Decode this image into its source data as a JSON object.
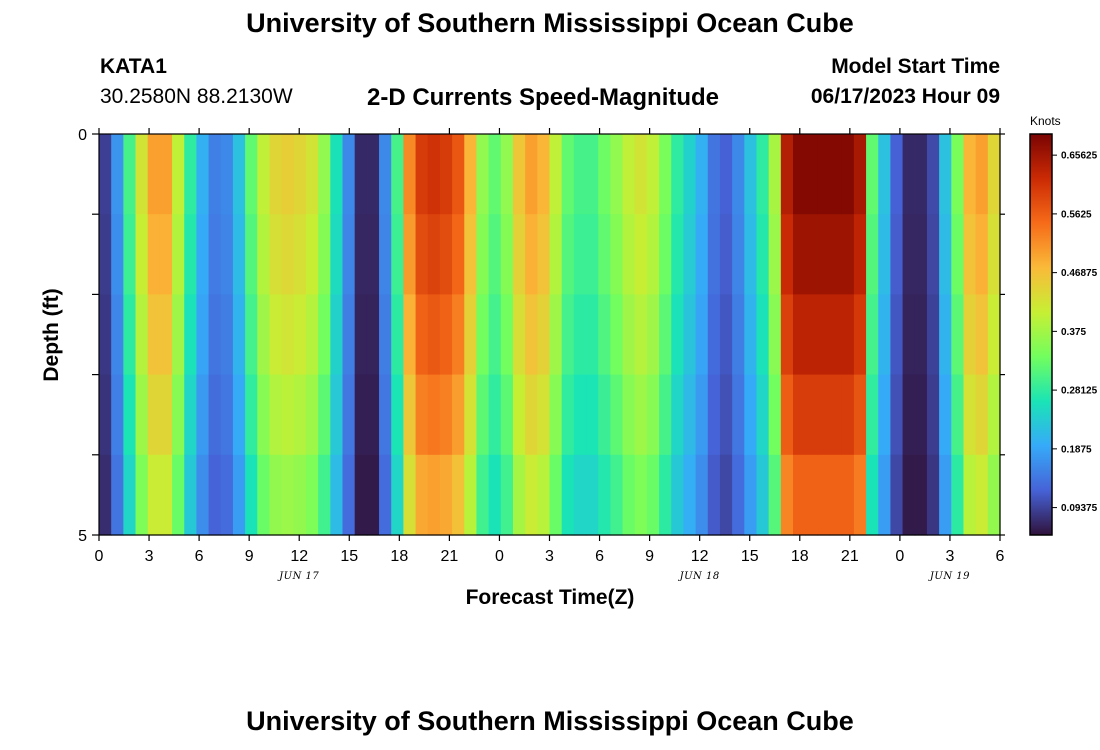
{
  "page": {
    "title": "University of Southern Mississippi Ocean Cube",
    "title_repeat": "University of Southern Mississippi Ocean Cube"
  },
  "header": {
    "station": "KATA1",
    "coords": "30.2580N  88.2130W",
    "subtitle": "2-D Currents Speed-Magnitude",
    "model_start_label": "Model Start Time",
    "model_start_value": "06/17/2023 Hour 09"
  },
  "chart_data": {
    "type": "heatmap",
    "title": "2-D Currents Speed-Magnitude",
    "xlabel": "Forecast Time(Z)",
    "ylabel": "Depth (ft)",
    "x_tick_labels": [
      "0",
      "3",
      "6",
      "9",
      "12",
      "15",
      "18",
      "21",
      "0",
      "3",
      "6",
      "9",
      "12",
      "15",
      "18",
      "21",
      "0",
      "3",
      "6"
    ],
    "date_labels": [
      {
        "text": "JUN 17",
        "at_hour": 12
      },
      {
        "text": "JUN 18",
        "at_hour": 36
      },
      {
        "text": "JUN 19",
        "at_hour": 51
      }
    ],
    "y_tick_labels": [
      "0",
      "5"
    ],
    "ylim": [
      0,
      5
    ],
    "xlim_hours": [
      0,
      54
    ],
    "n_depth_levels": 5,
    "colorbar": {
      "label": "Knots",
      "ticks": [
        "0.65625",
        "0.5625",
        "0.46875",
        "0.375",
        "0.28125",
        "0.1875",
        "0.09375"
      ],
      "range": [
        0.05,
        0.69
      ],
      "colors": [
        "#30123b",
        "#4662d7",
        "#36aaf9",
        "#1ae4b6",
        "#72fe5e",
        "#c7ef34",
        "#faba39",
        "#f66b19",
        "#cb2a04",
        "#7a0403"
      ]
    },
    "surface_speed_knots": [
      0.09,
      0.17,
      0.3,
      0.42,
      0.5,
      0.5,
      0.4,
      0.28,
      0.2,
      0.15,
      0.16,
      0.22,
      0.32,
      0.4,
      0.44,
      0.45,
      0.44,
      0.42,
      0.36,
      0.26,
      0.16,
      0.07,
      0.07,
      0.16,
      0.3,
      0.52,
      0.6,
      0.61,
      0.6,
      0.57,
      0.48,
      0.36,
      0.32,
      0.36,
      0.46,
      0.5,
      0.48,
      0.4,
      0.32,
      0.3,
      0.3,
      0.33,
      0.36,
      0.4,
      0.42,
      0.4,
      0.34,
      0.28,
      0.24,
      0.2,
      0.14,
      0.12,
      0.16,
      0.22,
      0.28,
      0.38,
      0.64,
      0.68,
      0.68,
      0.68,
      0.68,
      0.68,
      0.65,
      0.32,
      0.22,
      0.12,
      0.07,
      0.07,
      0.1,
      0.22,
      0.34,
      0.48,
      0.5,
      0.44
    ],
    "depth_scale": [
      1.0,
      0.97,
      0.93,
      0.88,
      0.82
    ]
  }
}
